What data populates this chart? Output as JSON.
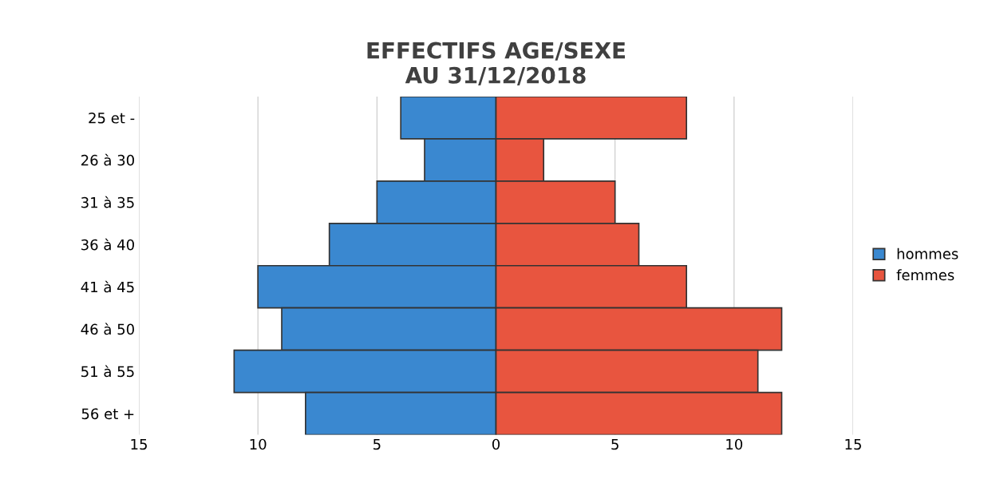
{
  "chart_data": {
    "type": "bar",
    "orientation": "horizontal",
    "title": "EFFECTIFS AGE/SEXE\nAU 31/12/2018",
    "categories": [
      "25 et -",
      "26 à 30",
      "31 à 35",
      "36 à 40",
      "41 à 45",
      "46 à 50",
      "51 à 55",
      "56 et +"
    ],
    "series": [
      {
        "name": "hommes",
        "color": "#3a88d0",
        "values": [
          -4,
          -3,
          -5,
          -7,
          -10,
          -9,
          -11,
          -8
        ]
      },
      {
        "name": "femmes",
        "color": "#e8553f",
        "values": [
          8,
          2,
          5,
          6,
          8,
          12,
          11,
          12
        ]
      }
    ],
    "xlim": [
      -15,
      15
    ],
    "xticks": [
      {
        "value": -15,
        "label": "15"
      },
      {
        "value": -10,
        "label": "10"
      },
      {
        "value": -5,
        "label": "5"
      },
      0,
      5,
      10,
      15
    ],
    "grid": "x",
    "legend": "right",
    "stacked": true
  }
}
